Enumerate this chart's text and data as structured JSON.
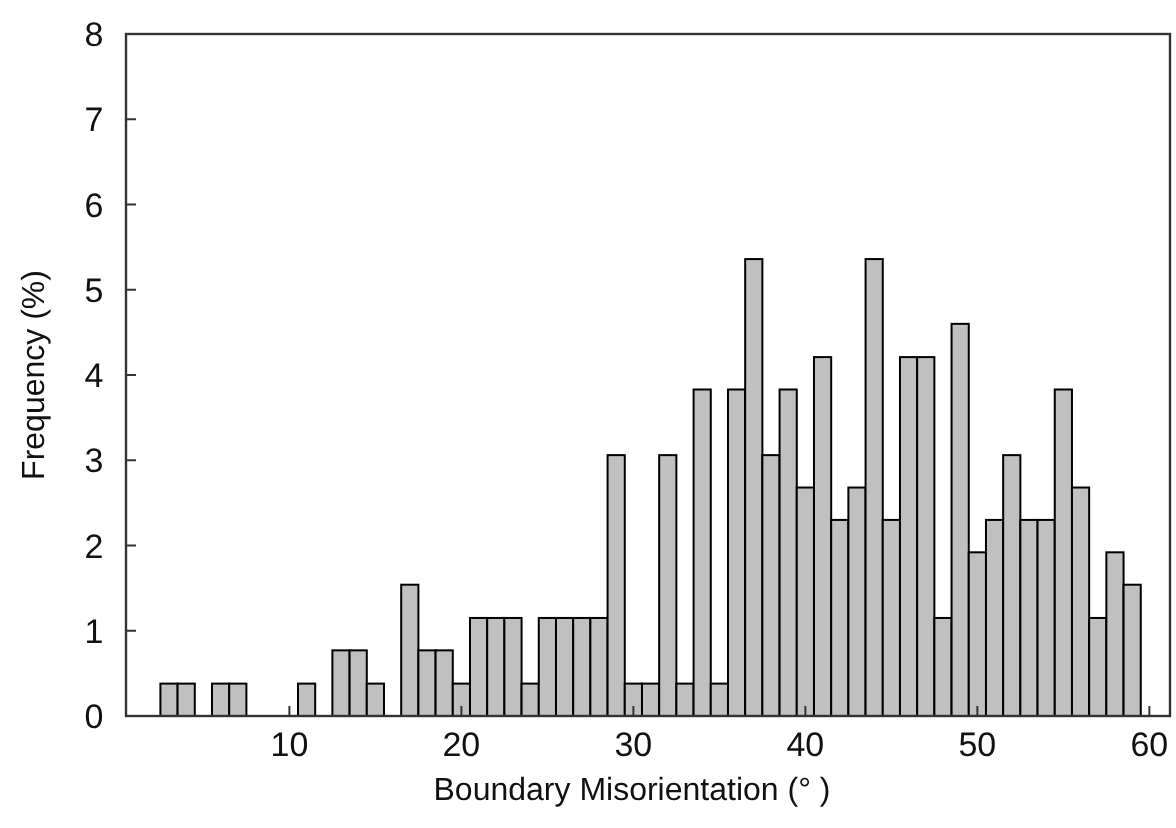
{
  "chart_data": {
    "type": "histogram",
    "xlabel": "Boundary Misorientation (°  )",
    "ylabel": "Frequency (%)",
    "color": "#c0c0c0",
    "bins": [
      2.5,
      3.5,
      4.5,
      5.5,
      6.5,
      7.5,
      8.5,
      9.5,
      10.5,
      11.5,
      12.5,
      13.5,
      14.5,
      15.5,
      16.5,
      17.5,
      18.5,
      19.5,
      20.5,
      21.5,
      22.5,
      23.5,
      24.5,
      25.5,
      26.5,
      27.5,
      28.5,
      29.5,
      30.5,
      31.5,
      32.5,
      33.5,
      34.5,
      35.5,
      36.5,
      37.5,
      38.5,
      39.5,
      40.5,
      41.5,
      42.5,
      43.5,
      44.5,
      45.5,
      46.5,
      47.5,
      48.5,
      49.5,
      50.5,
      51.5,
      52.5,
      53.5,
      54.5,
      55.5,
      56.5,
      57.5,
      58.5,
      59.5
    ],
    "values": [
      0.38,
      0.38,
      0,
      0.38,
      0.38,
      0,
      0,
      0,
      0.38,
      0,
      0.77,
      0.77,
      0.38,
      0,
      1.54,
      0.77,
      0.77,
      0.38,
      1.15,
      1.15,
      1.15,
      0.38,
      1.15,
      1.15,
      1.15,
      1.15,
      3.06,
      0.38,
      0.38,
      3.06,
      0.38,
      3.83,
      0.38,
      3.83,
      5.36,
      3.06,
      3.83,
      2.68,
      4.21,
      2.3,
      2.68,
      5.36,
      2.3,
      4.21,
      4.21,
      1.15,
      4.6,
      1.92,
      2.3,
      3.06,
      2.3,
      2.3,
      3.83,
      2.68,
      1.15,
      1.92,
      1.54
    ],
    "xlim": [
      0.5,
      61.2
    ],
    "xticks": [
      10,
      20,
      30,
      40,
      50,
      60
    ],
    "ylim": [
      0,
      8
    ],
    "yticks": [
      0,
      1,
      2,
      3,
      4,
      5,
      6,
      7,
      8
    ],
    "grid": false
  }
}
